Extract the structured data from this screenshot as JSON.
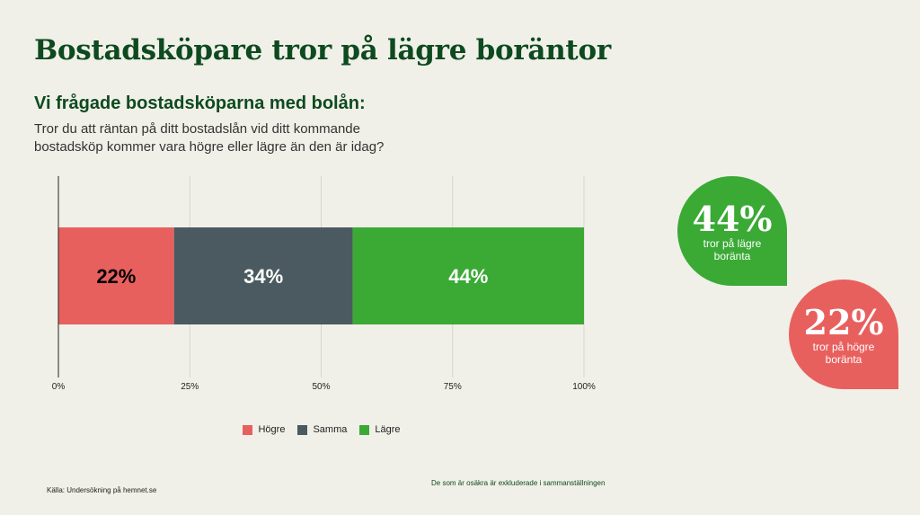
{
  "title": "Bostadsköpare tror på lägre boräntor",
  "subtitle": "Vi frågade bostadsköparna med bolån:",
  "question": "Tror du att räntan på ditt bostadslån vid ditt kommande bostadsköp kommer vara högre eller lägre än den är idag?",
  "colors": {
    "hogre": "#e8605e",
    "samma": "#4a5a60",
    "lagre": "#3aaa35",
    "title": "#0d4a1f"
  },
  "chart_data": {
    "type": "bar",
    "orientation": "horizontal-stacked",
    "categories": [
      ""
    ],
    "series": [
      {
        "name": "Högre",
        "values": [
          22
        ],
        "label": "22%",
        "color": "#e8605e",
        "label_color": "#000000"
      },
      {
        "name": "Samma",
        "values": [
          34
        ],
        "label": "34%",
        "color": "#4a5a60",
        "label_color": "#ffffff"
      },
      {
        "name": "Lägre",
        "values": [
          44
        ],
        "label": "44%",
        "color": "#3aaa35",
        "label_color": "#ffffff"
      }
    ],
    "xlim": [
      0,
      100
    ],
    "xticks": [
      {
        "value": 0,
        "label": "0%"
      },
      {
        "value": 25,
        "label": "25%"
      },
      {
        "value": 50,
        "label": "50%"
      },
      {
        "value": 75,
        "label": "75%"
      },
      {
        "value": 100,
        "label": "100%"
      }
    ],
    "grid": true,
    "legend_position": "bottom"
  },
  "bubbles": [
    {
      "value": "44%",
      "text": "tror på lägre boränta",
      "color": "#3aaa35"
    },
    {
      "value": "22%",
      "text": "tror på högre boränta",
      "color": "#e8605e"
    }
  ],
  "source": "Källa: Undersökning på hemnet.se",
  "footnote": "De som är osäkra är exkluderade i sammanställningen"
}
